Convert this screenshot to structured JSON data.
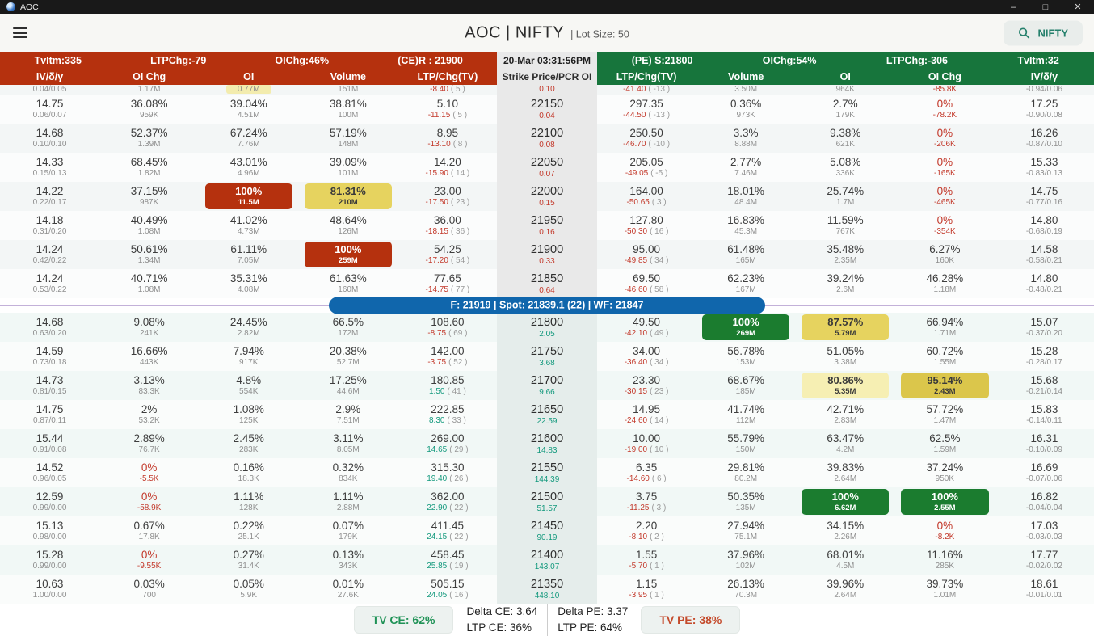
{
  "titlebar": {
    "app_name": "AOC",
    "minimize": "–",
    "maximize": "□",
    "close": "✕"
  },
  "header": {
    "title": "AOC | NIFTY",
    "lot_size": "| Lot Size: 50",
    "search_label": "NIFTY"
  },
  "ce_bar": {
    "tvitm": "TvItm:335",
    "ltpchg": "LTPChg:-79",
    "oichg": "OIChg:46%",
    "resistance": "(CE)R : 21900"
  },
  "timestamp": "20-Mar 03:31:56PM",
  "pe_bar": {
    "support": "(PE) S:21800",
    "oichg": "OIChg:54%",
    "ltpchg": "LTPChg:-306",
    "tvitm": "TvItm:32"
  },
  "columns": {
    "ce": [
      "IV/δ/γ",
      "OI Chg",
      "OI",
      "Volume",
      "LTP/Chg(TV)"
    ],
    "strike": "Strike Price/PCR OI",
    "pe": [
      "LTP/Chg(TV)",
      "Volume",
      "OI",
      "OI Chg",
      "IV/δ/γ"
    ]
  },
  "divider": {
    "text": "F: 21919  |  Spot: 21839.1 (22)   |  WF: 21847"
  },
  "partial_row": {
    "ce_iv2": "0.04/0.05",
    "ce_oichg2": "1.17M",
    "ce_oi2": "0.77M",
    "ce_vol2": "151M",
    "ce_chg": "-8.40",
    "ce_lots": "( 5 )",
    "pcr": "0.10",
    "pe_chg": "-41.40",
    "pe_lots": "( -13 )",
    "pe_vol2": "3.50M",
    "pe_oi2": "964K",
    "pe_oichg2": "-85.8K",
    "pe_iv2": "-0.94/0.06"
  },
  "rows_above": [
    {
      "strike": "22150",
      "pcr": "0.04",
      "pcr_c": "neg",
      "ce": {
        "iv": "14.75",
        "iv2": "0.06/0.07",
        "oichg": "36.08%",
        "oichg2": "959K",
        "oi": "39.04%",
        "oi2": "4.51M",
        "vol": "38.81%",
        "vol2": "100M",
        "ltp": "5.10",
        "chg": "-11.15",
        "chg_c": "neg",
        "lots": "( 5 )"
      },
      "pe": {
        "ltp": "297.35",
        "chg": "-44.50",
        "chg_c": "neg",
        "lots": "( -13 )",
        "vol": "0.36%",
        "vol2": "973K",
        "oi": "2.7%",
        "oi2": "179K",
        "oichg": "0%",
        "oichg_c": "neg",
        "oichg2": "-78.2K",
        "oichg2_c": "neg",
        "iv": "17.25",
        "iv2": "-0.90/0.08"
      }
    },
    {
      "strike": "22100",
      "pcr": "0.08",
      "pcr_c": "neg",
      "ce": {
        "iv": "14.68",
        "iv2": "0.10/0.10",
        "oichg": "52.37%",
        "oichg2": "1.39M",
        "oi": "67.24%",
        "oi2": "7.76M",
        "vol": "57.19%",
        "vol2": "148M",
        "ltp": "8.95",
        "chg": "-13.10",
        "chg_c": "neg",
        "lots": "( 8 )"
      },
      "pe": {
        "ltp": "250.50",
        "chg": "-46.70",
        "chg_c": "neg",
        "lots": "( -10 )",
        "vol": "3.3%",
        "vol2": "8.88M",
        "oi": "9.38%",
        "oi2": "621K",
        "oichg": "0%",
        "oichg_c": "neg",
        "oichg2": "-206K",
        "oichg2_c": "neg",
        "iv": "16.26",
        "iv2": "-0.87/0.10"
      }
    },
    {
      "strike": "22050",
      "pcr": "0.07",
      "pcr_c": "neg",
      "ce": {
        "iv": "14.33",
        "iv2": "0.15/0.13",
        "oichg": "68.45%",
        "oichg2": "1.82M",
        "oi": "43.01%",
        "oi2": "4.96M",
        "vol": "39.09%",
        "vol2": "101M",
        "ltp": "14.20",
        "chg": "-15.90",
        "chg_c": "neg",
        "lots": "( 14 )"
      },
      "pe": {
        "ltp": "205.05",
        "chg": "-49.05",
        "chg_c": "neg",
        "lots": "( -5 )",
        "vol": "2.77%",
        "vol2": "7.46M",
        "oi": "5.08%",
        "oi2": "336K",
        "oichg": "0%",
        "oichg_c": "neg",
        "oichg2": "-165K",
        "oichg2_c": "neg",
        "iv": "15.33",
        "iv2": "-0.83/0.13"
      }
    },
    {
      "strike": "22000",
      "pcr": "0.15",
      "pcr_c": "neg",
      "ce": {
        "iv": "14.22",
        "iv2": "0.22/0.17",
        "oichg": "37.15%",
        "oichg2": "987K",
        "oi": "100%",
        "oi2": "11.5M",
        "oi_hl": "red",
        "vol": "81.31%",
        "vol2": "210M",
        "vol_hl": "yellow",
        "ltp": "23.00",
        "chg": "-17.50",
        "chg_c": "neg",
        "lots": "( 23 )"
      },
      "pe": {
        "ltp": "164.00",
        "chg": "-50.65",
        "chg_c": "neg",
        "lots": "( 3 )",
        "vol": "18.01%",
        "vol2": "48.4M",
        "oi": "25.74%",
        "oi2": "1.7M",
        "oichg": "0%",
        "oichg_c": "neg",
        "oichg2": "-465K",
        "oichg2_c": "neg",
        "iv": "14.75",
        "iv2": "-0.77/0.16"
      }
    },
    {
      "strike": "21950",
      "pcr": "0.16",
      "pcr_c": "neg",
      "ce": {
        "iv": "14.18",
        "iv2": "0.31/0.20",
        "oichg": "40.49%",
        "oichg2": "1.08M",
        "oi": "41.02%",
        "oi2": "4.73M",
        "vol": "48.64%",
        "vol2": "126M",
        "ltp": "36.00",
        "chg": "-18.15",
        "chg_c": "neg",
        "lots": "( 36 )"
      },
      "pe": {
        "ltp": "127.80",
        "chg": "-50.30",
        "chg_c": "neg",
        "lots": "( 16 )",
        "vol": "16.83%",
        "vol2": "45.3M",
        "oi": "11.59%",
        "oi2": "767K",
        "oichg": "0%",
        "oichg_c": "neg",
        "oichg2": "-354K",
        "oichg2_c": "neg",
        "iv": "14.80",
        "iv2": "-0.68/0.19"
      }
    },
    {
      "strike": "21900",
      "pcr": "0.33",
      "pcr_c": "neg",
      "ce": {
        "iv": "14.24",
        "iv2": "0.42/0.22",
        "oichg": "50.61%",
        "oichg2": "1.34M",
        "oi": "61.11%",
        "oi2": "7.05M",
        "vol": "100%",
        "vol2": "259M",
        "vol_hl": "red",
        "ltp": "54.25",
        "chg": "-17.20",
        "chg_c": "neg",
        "lots": "( 54 )"
      },
      "pe": {
        "ltp": "95.00",
        "chg": "-49.85",
        "chg_c": "neg",
        "lots": "( 34 )",
        "vol": "61.48%",
        "vol2": "165M",
        "oi": "35.48%",
        "oi2": "2.35M",
        "oichg": "6.27%",
        "oichg2": "160K",
        "iv": "14.58",
        "iv2": "-0.58/0.21"
      }
    },
    {
      "strike": "21850",
      "pcr": "0.64",
      "pcr_c": "neg",
      "ce": {
        "iv": "14.24",
        "iv2": "0.53/0.22",
        "oichg": "40.71%",
        "oichg2": "1.08M",
        "oi": "35.31%",
        "oi2": "4.08M",
        "vol": "61.63%",
        "vol2": "160M",
        "ltp": "77.65",
        "chg": "-14.75",
        "chg_c": "neg",
        "lots": "( 77 )"
      },
      "pe": {
        "ltp": "69.50",
        "chg": "-46.60",
        "chg_c": "neg",
        "lots": "( 58 )",
        "vol": "62.23%",
        "vol2": "167M",
        "oi": "39.24%",
        "oi2": "2.6M",
        "oichg": "46.28%",
        "oichg2": "1.18M",
        "iv": "14.80",
        "iv2": "-0.48/0.21"
      }
    }
  ],
  "rows_below": [
    {
      "strike": "21800",
      "pcr": "2.05",
      "pcr_c": "pos",
      "ce": {
        "iv": "14.68",
        "iv2": "0.63/0.20",
        "oichg": "9.08%",
        "oichg2": "241K",
        "oi": "24.45%",
        "oi2": "2.82M",
        "vol": "66.5%",
        "vol2": "172M",
        "ltp": "108.60",
        "chg": "-8.75",
        "chg_c": "neg",
        "lots": "( 69 )"
      },
      "pe": {
        "ltp": "49.50",
        "chg": "-42.10",
        "chg_c": "neg",
        "lots": "( 49 )",
        "vol": "100%",
        "vol2": "269M",
        "vol_hl": "green",
        "oi": "87.57%",
        "oi2": "5.79M",
        "oi_hl": "yellow",
        "oichg": "66.94%",
        "oichg2": "1.71M",
        "iv": "15.07",
        "iv2": "-0.37/0.20"
      }
    },
    {
      "strike": "21750",
      "pcr": "3.68",
      "pcr_c": "pos",
      "ce": {
        "iv": "14.59",
        "iv2": "0.73/0.18",
        "oichg": "16.66%",
        "oichg2": "443K",
        "oi": "7.94%",
        "oi2": "917K",
        "vol": "20.38%",
        "vol2": "52.7M",
        "ltp": "142.00",
        "chg": "-3.75",
        "chg_c": "neg",
        "lots": "( 52 )"
      },
      "pe": {
        "ltp": "34.00",
        "chg": "-36.40",
        "chg_c": "neg",
        "lots": "( 34 )",
        "vol": "56.78%",
        "vol2": "153M",
        "oi": "51.05%",
        "oi2": "3.38M",
        "oichg": "60.72%",
        "oichg2": "1.55M",
        "iv": "15.28",
        "iv2": "-0.28/0.17"
      }
    },
    {
      "strike": "21700",
      "pcr": "9.66",
      "pcr_c": "pos",
      "ce": {
        "iv": "14.73",
        "iv2": "0.81/0.15",
        "oichg": "3.13%",
        "oichg2": "83.3K",
        "oi": "4.8%",
        "oi2": "554K",
        "vol": "17.25%",
        "vol2": "44.6M",
        "ltp": "180.85",
        "chg": "1.50",
        "chg_c": "pos",
        "lots": "( 41 )"
      },
      "pe": {
        "ltp": "23.30",
        "chg": "-30.15",
        "chg_c": "neg",
        "lots": "( 23 )",
        "vol": "68.67%",
        "vol2": "185M",
        "oi": "80.86%",
        "oi2": "5.35M",
        "oi_hl": "paleyellow",
        "oichg": "95.14%",
        "oichg2": "2.43M",
        "oichg_hl": "darkyellow",
        "iv": "15.68",
        "iv2": "-0.21/0.14"
      }
    },
    {
      "strike": "21650",
      "pcr": "22.59",
      "pcr_c": "pos",
      "ce": {
        "iv": "14.75",
        "iv2": "0.87/0.11",
        "oichg": "2%",
        "oichg2": "53.2K",
        "oi": "1.08%",
        "oi2": "125K",
        "vol": "2.9%",
        "vol2": "7.51M",
        "ltp": "222.85",
        "chg": "8.30",
        "chg_c": "pos",
        "lots": "( 33 )"
      },
      "pe": {
        "ltp": "14.95",
        "chg": "-24.60",
        "chg_c": "neg",
        "lots": "( 14 )",
        "vol": "41.74%",
        "vol2": "112M",
        "oi": "42.71%",
        "oi2": "2.83M",
        "oichg": "57.72%",
        "oichg2": "1.47M",
        "iv": "15.83",
        "iv2": "-0.14/0.11"
      }
    },
    {
      "strike": "21600",
      "pcr": "14.83",
      "pcr_c": "pos",
      "ce": {
        "iv": "15.44",
        "iv2": "0.91/0.08",
        "oichg": "2.89%",
        "oichg2": "76.7K",
        "oi": "2.45%",
        "oi2": "283K",
        "vol": "3.11%",
        "vol2": "8.05M",
        "ltp": "269.00",
        "chg": "14.65",
        "chg_c": "pos",
        "lots": "( 29 )"
      },
      "pe": {
        "ltp": "10.00",
        "chg": "-19.00",
        "chg_c": "neg",
        "lots": "( 10 )",
        "vol": "55.79%",
        "vol2": "150M",
        "oi": "63.47%",
        "oi2": "4.2M",
        "oichg": "62.5%",
        "oichg2": "1.59M",
        "iv": "16.31",
        "iv2": "-0.10/0.09"
      }
    },
    {
      "strike": "21550",
      "pcr": "144.39",
      "pcr_c": "pos",
      "ce": {
        "iv": "14.52",
        "iv2": "0.96/0.05",
        "oichg": "0%",
        "oichg_c": "neg",
        "oichg2": "-5.5K",
        "oichg2_c": "neg",
        "oi": "0.16%",
        "oi2": "18.3K",
        "vol": "0.32%",
        "vol2": "834K",
        "ltp": "315.30",
        "chg": "19.40",
        "chg_c": "pos",
        "lots": "( 26 )"
      },
      "pe": {
        "ltp": "6.35",
        "chg": "-14.60",
        "chg_c": "neg",
        "lots": "( 6 )",
        "vol": "29.81%",
        "vol2": "80.2M",
        "oi": "39.83%",
        "oi2": "2.64M",
        "oichg": "37.24%",
        "oichg2": "950K",
        "iv": "16.69",
        "iv2": "-0.07/0.06"
      }
    },
    {
      "strike": "21500",
      "pcr": "51.57",
      "pcr_c": "pos",
      "ce": {
        "iv": "12.59",
        "iv2": "0.99/0.00",
        "oichg": "0%",
        "oichg_c": "neg",
        "oichg2": "-58.9K",
        "oichg2_c": "neg",
        "oi": "1.11%",
        "oi2": "128K",
        "vol": "1.11%",
        "vol2": "2.88M",
        "ltp": "362.00",
        "chg": "22.90",
        "chg_c": "pos",
        "lots": "( 22 )"
      },
      "pe": {
        "ltp": "3.75",
        "chg": "-11.25",
        "chg_c": "neg",
        "lots": "( 3 )",
        "vol": "50.35%",
        "vol2": "135M",
        "oi": "100%",
        "oi2": "6.62M",
        "oi_hl": "green",
        "oichg": "100%",
        "oichg2": "2.55M",
        "oichg_hl": "green",
        "iv": "16.82",
        "iv2": "-0.04/0.04"
      }
    },
    {
      "strike": "21450",
      "pcr": "90.19",
      "pcr_c": "pos",
      "ce": {
        "iv": "15.13",
        "iv2": "0.98/0.00",
        "oichg": "0.67%",
        "oichg2": "17.8K",
        "oi": "0.22%",
        "oi2": "25.1K",
        "vol": "0.07%",
        "vol2": "179K",
        "ltp": "411.45",
        "chg": "24.15",
        "chg_c": "pos",
        "lots": "( 22 )"
      },
      "pe": {
        "ltp": "2.20",
        "chg": "-8.10",
        "chg_c": "neg",
        "lots": "( 2 )",
        "vol": "27.94%",
        "vol2": "75.1M",
        "oi": "34.15%",
        "oi2": "2.26M",
        "oichg": "0%",
        "oichg_c": "neg",
        "oichg2": "-8.2K",
        "oichg2_c": "neg",
        "iv": "17.03",
        "iv2": "-0.03/0.03"
      }
    },
    {
      "strike": "21400",
      "pcr": "143.07",
      "pcr_c": "pos",
      "ce": {
        "iv": "15.28",
        "iv2": "0.99/0.00",
        "oichg": "0%",
        "oichg_c": "neg",
        "oichg2": "-9.55K",
        "oichg2_c": "neg",
        "oi": "0.27%",
        "oi2": "31.4K",
        "vol": "0.13%",
        "vol2": "343K",
        "ltp": "458.45",
        "chg": "25.85",
        "chg_c": "pos",
        "lots": "( 19 )"
      },
      "pe": {
        "ltp": "1.55",
        "chg": "-5.70",
        "chg_c": "neg",
        "lots": "( 1 )",
        "vol": "37.96%",
        "vol2": "102M",
        "oi": "68.01%",
        "oi2": "4.5M",
        "oichg": "11.16%",
        "oichg2": "285K",
        "iv": "17.77",
        "iv2": "-0.02/0.02"
      }
    },
    {
      "strike": "21350",
      "pcr": "448.10",
      "pcr_c": "pos",
      "ce": {
        "iv": "10.63",
        "iv2": "1.00/0.00",
        "oichg": "0.03%",
        "oichg2": "700",
        "oi": "0.05%",
        "oi2": "5.9K",
        "vol": "0.01%",
        "vol2": "27.6K",
        "ltp": "505.15",
        "chg": "24.05",
        "chg_c": "pos",
        "lots": "( 16 )"
      },
      "pe": {
        "ltp": "1.15",
        "chg": "-3.95",
        "chg_c": "neg",
        "lots": "( 1 )",
        "vol": "26.13%",
        "vol2": "70.3M",
        "oi": "39.96%",
        "oi2": "2.64M",
        "oichg": "39.73%",
        "oichg2": "1.01M",
        "iv": "18.61",
        "iv2": "-0.01/0.01"
      }
    }
  ],
  "footer": {
    "tv_ce": "TV CE: 62%",
    "delta_ce": "Delta CE: 3.64",
    "delta_pe": "Delta PE: 3.37",
    "ltp_ce": "LTP CE: 36%",
    "ltp_pe": "LTP PE: 64%",
    "tv_pe": "TV PE: 38%"
  }
}
